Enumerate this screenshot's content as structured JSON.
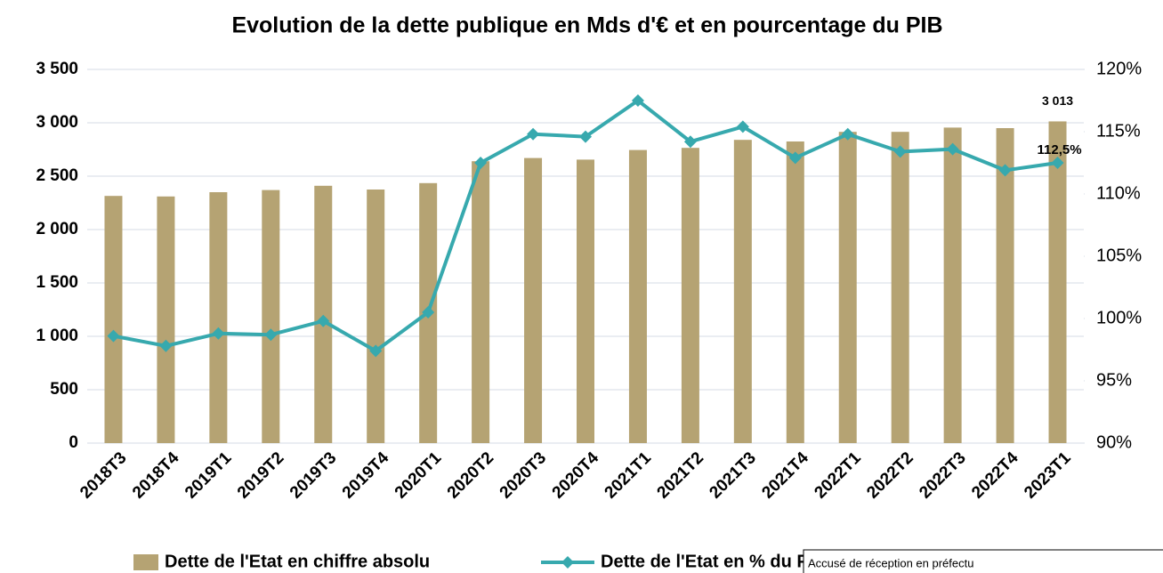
{
  "chart_data": {
    "type": "bar-line",
    "title": "Evolution de la dette publique en Mds d'€ et en pourcentage du PIB",
    "categories": [
      "2018T3",
      "2018T4",
      "2019T1",
      "2019T2",
      "2019T3",
      "2019T4",
      "2020T1",
      "2020T2",
      "2020T3",
      "2020T4",
      "2021T1",
      "2021T2",
      "2021T3",
      "2021T4",
      "2022T1",
      "2022T2",
      "2022T3",
      "2022T4",
      "2023T1"
    ],
    "series": [
      {
        "name": "Dette de l'Etat en chiffre absolu",
        "type": "bar",
        "color": "#b5a373",
        "values": [
          2315,
          2310,
          2350,
          2370,
          2410,
          2375,
          2435,
          2640,
          2670,
          2655,
          2745,
          2765,
          2840,
          2825,
          2915,
          2915,
          2955,
          2950,
          3013
        ],
        "value_labels": [
          null,
          null,
          null,
          null,
          null,
          null,
          null,
          null,
          null,
          null,
          null,
          null,
          null,
          null,
          null,
          null,
          null,
          null,
          "3 013"
        ]
      },
      {
        "name": "Dette de l'Etat en % du PIB (échelle de droite)",
        "type": "line",
        "axis": "y2",
        "color": "#37a9ae",
        "values": [
          98.6,
          97.8,
          98.8,
          98.7,
          99.8,
          97.4,
          100.5,
          112.5,
          114.8,
          114.6,
          117.5,
          114.2,
          115.4,
          112.9,
          114.8,
          113.4,
          113.6,
          111.9,
          112.5
        ],
        "value_labels": [
          null,
          null,
          null,
          null,
          null,
          null,
          null,
          null,
          null,
          null,
          null,
          null,
          null,
          null,
          null,
          null,
          null,
          null,
          "112,5%"
        ]
      }
    ],
    "ylim": [
      0,
      3500
    ],
    "yticks": [
      0,
      {
        "value": 500,
        "label": "500"
      },
      {
        "value": 1000,
        "label": "1 000"
      },
      {
        "value": 1500,
        "label": "1 500"
      },
      {
        "value": 2000,
        "label": "2 000"
      },
      {
        "value": 2500,
        "label": "2 500"
      },
      {
        "value": 3000,
        "label": "3 000"
      },
      {
        "value": 3500,
        "label": "3 500"
      }
    ],
    "y2lim": [
      90,
      120
    ],
    "y2ticks": [
      {
        "value": 90,
        "label": "90%"
      },
      {
        "value": 95,
        "label": "95%"
      },
      {
        "value": 100,
        "label": "100%"
      },
      {
        "value": 105,
        "label": "105%"
      },
      {
        "value": 110,
        "label": "110%"
      },
      {
        "value": 115,
        "label": "115%"
      },
      {
        "value": 120,
        "label": "120%"
      }
    ],
    "grid": true,
    "legend": "bottom"
  },
  "stamp": "Accusé de réception en préfectu"
}
